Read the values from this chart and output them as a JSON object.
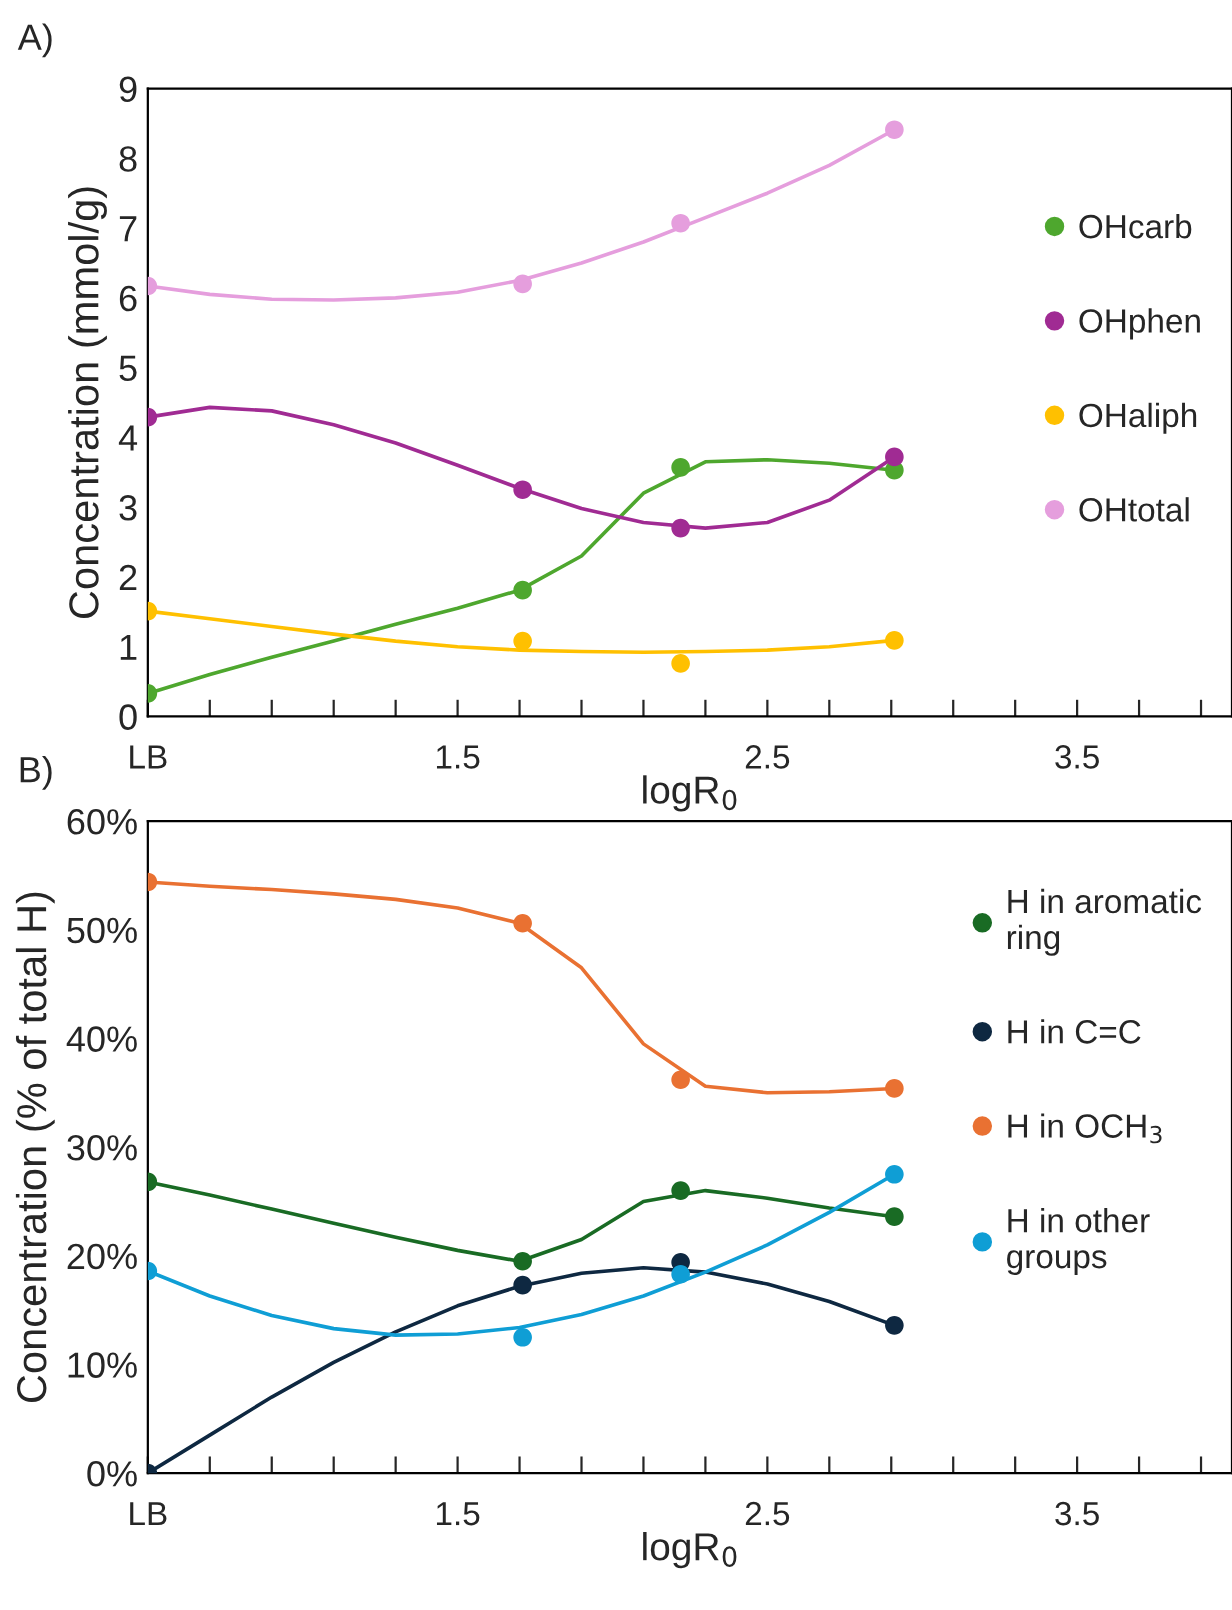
{
  "chart_data": [
    {
      "type": "line",
      "title": "A)",
      "xlabel": "logR$_{0}$",
      "ylabel": "Concentration (mmol/g)",
      "xlim": [
        0.5,
        4.0
      ],
      "ylim": [
        0,
        9
      ],
      "xticks": [
        {
          "value": 0.5,
          "label": "LB"
        },
        {
          "value": 0.7,
          "label": null
        },
        {
          "value": 0.9,
          "label": null
        },
        {
          "value": 1.1,
          "label": null
        },
        {
          "value": 1.3,
          "label": null
        },
        {
          "value": 1.5,
          "label": "1.5"
        },
        {
          "value": 1.7,
          "label": null
        },
        {
          "value": 1.9,
          "label": null
        },
        {
          "value": 2.1,
          "label": null
        },
        {
          "value": 2.3,
          "label": null
        },
        {
          "value": 2.5,
          "label": "2.5"
        },
        {
          "value": 2.7,
          "label": null
        },
        {
          "value": 2.9,
          "label": null
        },
        {
          "value": 3.1,
          "label": null
        },
        {
          "value": 3.3,
          "label": null
        },
        {
          "value": 3.5,
          "label": "3.5"
        },
        {
          "value": 3.7,
          "label": null
        },
        {
          "value": 3.9,
          "label": null
        }
      ],
      "yticks": [
        0,
        1,
        2,
        3,
        4,
        5,
        6,
        7,
        8,
        9
      ],
      "grid": false,
      "legend": "right",
      "marker": "circle",
      "series": [
        {
          "type": "scatter",
          "name": "OHcarb",
          "color": "#4ea72e",
          "x": [
            0.5,
            1.71,
            2.22,
            2.91
          ],
          "values": [
            0.33,
            1.81,
            3.57,
            3.53
          ]
        },
        {
          "type": "scatter",
          "name": "OHphen",
          "color": "#a02b93",
          "x": [
            0.5,
            1.71,
            2.22,
            2.91
          ],
          "values": [
            4.29,
            3.25,
            2.7,
            3.72
          ]
        },
        {
          "type": "scatter",
          "name": "OHaliph",
          "color": "#ffc000",
          "x": [
            0.5,
            1.71,
            2.22,
            2.91
          ],
          "values": [
            1.51,
            1.08,
            0.76,
            1.09
          ]
        },
        {
          "type": "scatter",
          "name": "OHtotal",
          "color": "#e59edd",
          "x": [
            0.5,
            1.71,
            2.22,
            2.91
          ],
          "values": [
            6.17,
            6.2,
            7.07,
            8.41
          ]
        },
        {
          "marker": "none",
          "color": "#4ea72e",
          "x": [
            0.5,
            0.7,
            0.9,
            1.1,
            1.3,
            1.5,
            1.7,
            1.9,
            2.1,
            2.3,
            2.5,
            2.7,
            2.91
          ],
          "values": [
            0.33,
            0.6,
            0.85,
            1.08,
            1.32,
            1.55,
            1.81,
            2.3,
            3.2,
            3.65,
            3.68,
            3.63,
            3.53
          ]
        },
        {
          "marker": "none",
          "color": "#a02b93",
          "x": [
            0.5,
            0.7,
            0.9,
            1.1,
            1.3,
            1.5,
            1.7,
            1.9,
            2.1,
            2.3,
            2.5,
            2.7,
            2.91
          ],
          "values": [
            4.29,
            4.43,
            4.38,
            4.18,
            3.92,
            3.6,
            3.27,
            2.98,
            2.78,
            2.7,
            2.78,
            3.1,
            3.72
          ]
        },
        {
          "marker": "none",
          "color": "#ffc000",
          "x": [
            0.5,
            0.7,
            0.9,
            1.1,
            1.3,
            1.5,
            1.7,
            1.9,
            2.1,
            2.3,
            2.5,
            2.7,
            2.91
          ],
          "values": [
            1.51,
            1.4,
            1.29,
            1.18,
            1.08,
            1.0,
            0.95,
            0.93,
            0.92,
            0.93,
            0.95,
            1.0,
            1.09
          ]
        },
        {
          "marker": "none",
          "color": "#e59edd",
          "x": [
            0.5,
            0.7,
            0.9,
            1.1,
            1.3,
            1.5,
            1.7,
            1.9,
            2.1,
            2.3,
            2.5,
            2.7,
            2.91
          ],
          "values": [
            6.17,
            6.05,
            5.98,
            5.97,
            6.0,
            6.08,
            6.25,
            6.5,
            6.8,
            7.15,
            7.5,
            7.9,
            8.41
          ]
        }
      ]
    },
    {
      "type": "line",
      "title": "B)",
      "xlabel": "logR$_{0}$",
      "ylabel": "Concentration (% of total H)",
      "xlim": [
        0.5,
        4.0
      ],
      "ylim": [
        0,
        60
      ],
      "xticks": [
        {
          "value": 0.5,
          "label": "LB"
        },
        {
          "value": 0.7,
          "label": null
        },
        {
          "value": 0.9,
          "label": null
        },
        {
          "value": 1.1,
          "label": null
        },
        {
          "value": 1.3,
          "label": null
        },
        {
          "value": 1.5,
          "label": "1.5"
        },
        {
          "value": 1.7,
          "label": null
        },
        {
          "value": 1.9,
          "label": null
        },
        {
          "value": 2.1,
          "label": null
        },
        {
          "value": 2.3,
          "label": null
        },
        {
          "value": 2.5,
          "label": "2.5"
        },
        {
          "value": 2.7,
          "label": null
        },
        {
          "value": 2.9,
          "label": null
        },
        {
          "value": 3.1,
          "label": null
        },
        {
          "value": 3.3,
          "label": null
        },
        {
          "value": 3.5,
          "label": "3.5"
        },
        {
          "value": 3.7,
          "label": null
        },
        {
          "value": 3.9,
          "label": null
        }
      ],
      "yticks": [
        {
          "value": 0,
          "label": "0%"
        },
        {
          "value": 10,
          "label": "10%"
        },
        {
          "value": 20,
          "label": "20%"
        },
        {
          "value": 30,
          "label": "30%"
        },
        {
          "value": 40,
          "label": "40%"
        },
        {
          "value": 50,
          "label": "50%"
        },
        {
          "value": 60,
          "label": "60%"
        }
      ],
      "grid": false,
      "legend": "right",
      "marker": "circle",
      "series": [
        {
          "type": "scatter",
          "name": "H in aromatic ring",
          "color": "#196b24",
          "x": [
            0.5,
            1.71,
            2.22,
            2.91
          ],
          "values": [
            26.8,
            19.5,
            26.0,
            23.6
          ]
        },
        {
          "type": "scatter",
          "name": "H in C=C",
          "color": "#0e2841",
          "x": [
            0.5,
            1.71,
            2.22,
            2.91
          ],
          "values": [
            0,
            17.3,
            19.4,
            13.6
          ]
        },
        {
          "type": "scatter",
          "name": "H in OCH$_{3}$",
          "color": "#e97132",
          "x": [
            0.5,
            1.71,
            2.22,
            2.91
          ],
          "values": [
            54.4,
            50.6,
            36.2,
            35.4
          ]
        },
        {
          "type": "scatter",
          "name": "H in other groups",
          "color": "#0f9ed5",
          "x": [
            0.5,
            1.71,
            2.22,
            2.91
          ],
          "values": [
            18.6,
            12.5,
            18.3,
            27.5
          ]
        },
        {
          "marker": "none",
          "color": "#196b24",
          "x": [
            0.5,
            0.7,
            0.9,
            1.1,
            1.3,
            1.5,
            1.7,
            1.9,
            2.1,
            2.3,
            2.5,
            2.7,
            2.91
          ],
          "values": [
            26.8,
            25.6,
            24.3,
            23.0,
            21.7,
            20.5,
            19.5,
            21.5,
            25.0,
            26.0,
            25.3,
            24.4,
            23.6
          ]
        },
        {
          "marker": "none",
          "color": "#0e2841",
          "x": [
            0.5,
            0.7,
            0.9,
            1.1,
            1.3,
            1.5,
            1.7,
            1.9,
            2.1,
            2.3,
            2.5,
            2.7,
            2.91
          ],
          "values": [
            0,
            3.5,
            7.0,
            10.2,
            13.0,
            15.4,
            17.2,
            18.4,
            18.9,
            18.5,
            17.4,
            15.8,
            13.6
          ]
        },
        {
          "marker": "none",
          "color": "#e97132",
          "x": [
            0.5,
            0.7,
            0.9,
            1.1,
            1.3,
            1.5,
            1.7,
            1.9,
            2.1,
            2.3,
            2.5,
            2.7,
            2.91
          ],
          "values": [
            54.4,
            54.0,
            53.7,
            53.3,
            52.8,
            52.0,
            50.6,
            46.5,
            39.5,
            35.6,
            35.0,
            35.1,
            35.4
          ]
        },
        {
          "marker": "none",
          "color": "#0f9ed5",
          "x": [
            0.5,
            0.7,
            0.9,
            1.1,
            1.3,
            1.5,
            1.7,
            1.9,
            2.1,
            2.3,
            2.5,
            2.7,
            2.91
          ],
          "values": [
            18.6,
            16.3,
            14.5,
            13.3,
            12.7,
            12.8,
            13.4,
            14.6,
            16.3,
            18.5,
            21.0,
            24.0,
            27.5
          ]
        }
      ]
    }
  ]
}
